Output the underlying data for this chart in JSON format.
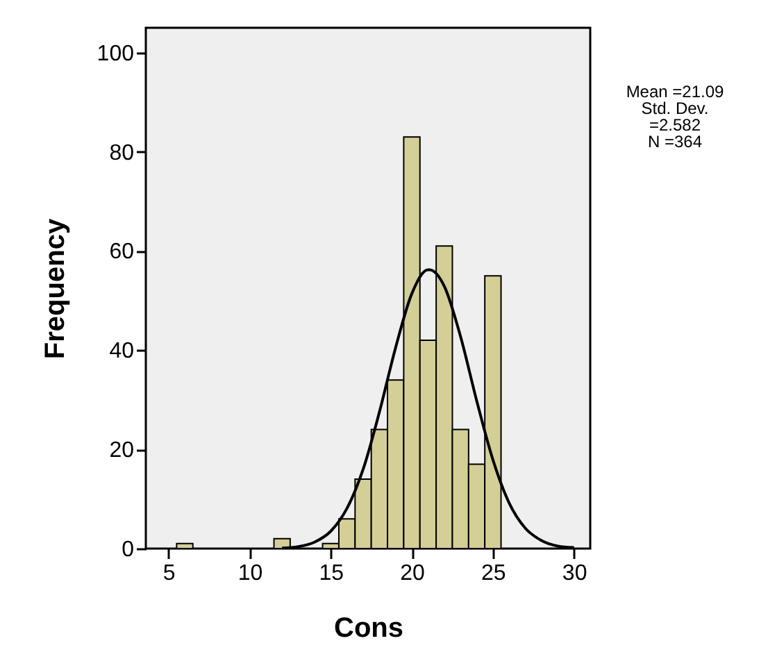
{
  "chart_data": {
    "type": "histogram",
    "xlabel": "Cons",
    "ylabel": "Frequency",
    "annotations": [
      "Mean =21.09",
      "Std. Dev.",
      "=2.582",
      "N =364"
    ],
    "bins": [
      5.5,
      6.5,
      7.5,
      8.5,
      9.5,
      10.5,
      11.5,
      12.5,
      13.5,
      14.5,
      15.5,
      16.5,
      17.5,
      18.5,
      19.5,
      20.5,
      21.5,
      22.5,
      23.5,
      24.5,
      25.5
    ],
    "series": [
      {
        "color": "#d3cf97",
        "values": [
          1,
          0,
          0,
          0,
          0,
          0,
          2,
          0,
          0,
          1,
          6,
          14,
          24,
          34,
          83,
          42,
          61,
          24,
          17,
          55
        ]
      },
      {
        "type": "line",
        "color": "#000000",
        "x": [
          12,
          13,
          14,
          15,
          16,
          17,
          18,
          19,
          20,
          21,
          21.09,
          22,
          23,
          24,
          25,
          26,
          27,
          28,
          29,
          30
        ],
        "values": [
          0.1,
          0.4,
          1.3,
          3.5,
          8.1,
          16,
          27.5,
          40.5,
          51.4,
          56.2,
          56.2,
          52.9,
          42.8,
          29.8,
          17.9,
          9.2,
          4.1,
          1.6,
          0.5,
          0.2
        ]
      }
    ],
    "xlim": [
      3.6,
      31
    ],
    "xticks": [
      5,
      10,
      15,
      20,
      25,
      30
    ],
    "ylim": [
      0,
      105
    ],
    "yticks": [
      0,
      20,
      40,
      60,
      80,
      100
    ],
    "grid": false
  }
}
